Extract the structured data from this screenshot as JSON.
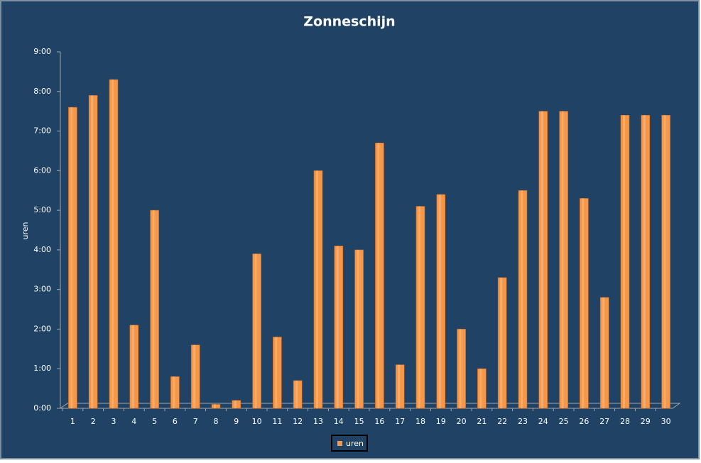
{
  "chart_data": {
    "type": "bar",
    "title": "Zonneschijn",
    "y_label": "uren",
    "categories": [
      "1",
      "2",
      "3",
      "4",
      "5",
      "6",
      "7",
      "8",
      "9",
      "10",
      "11",
      "12",
      "13",
      "14",
      "15",
      "16",
      "17",
      "18",
      "19",
      "20",
      "21",
      "22",
      "23",
      "24",
      "25",
      "26",
      "27",
      "28",
      "29",
      "30"
    ],
    "series": [
      {
        "name": "uren",
        "color": "#f79646",
        "values": [
          7.6,
          7.9,
          8.3,
          2.1,
          5.0,
          0.8,
          1.6,
          0.1,
          0.2,
          3.9,
          1.8,
          0.7,
          6.0,
          4.1,
          4.0,
          6.7,
          1.1,
          5.1,
          5.4,
          2.0,
          1.0,
          3.3,
          5.5,
          7.5,
          7.5,
          5.3,
          2.8,
          7.4,
          7.4,
          7.4
        ]
      }
    ],
    "ylim": [
      0,
      9
    ],
    "yticks": [
      {
        "value": 0,
        "label": "0:00"
      },
      {
        "value": 1,
        "label": "1:00"
      },
      {
        "value": 2,
        "label": "2:00"
      },
      {
        "value": 3,
        "label": "3:00"
      },
      {
        "value": 4,
        "label": "4:00"
      },
      {
        "value": 5,
        "label": "5:00"
      },
      {
        "value": 6,
        "label": "6:00"
      },
      {
        "value": 7,
        "label": "7:00"
      },
      {
        "value": 8,
        "label": "8:00"
      },
      {
        "value": 9,
        "label": "9:00"
      }
    ],
    "legend": "bottom"
  }
}
